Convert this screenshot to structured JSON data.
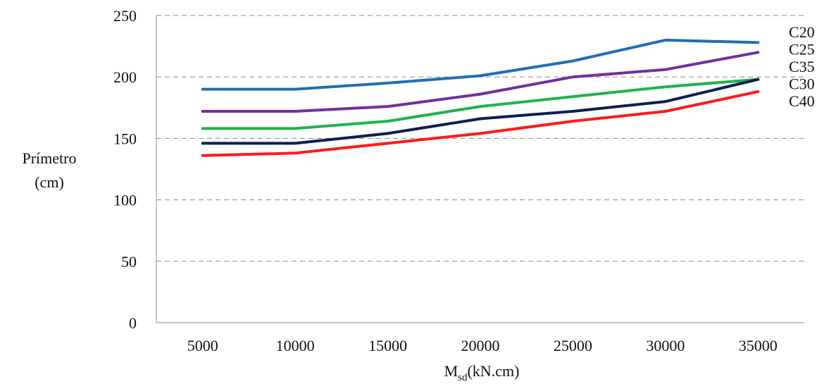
{
  "chart_data": {
    "type": "line",
    "x": [
      5000,
      10000,
      15000,
      20000,
      25000,
      30000,
      35000
    ],
    "categories": [
      "5000",
      "10000",
      "15000",
      "20000",
      "25000",
      "30000",
      "35000"
    ],
    "ylabel_line1": "Prímetro",
    "ylabel_line2": "(cm)",
    "xlabel_main": "M",
    "xlabel_sub": "sd",
    "xlabel_unit": "(kN.cm)",
    "ylim": [
      0,
      250
    ],
    "yticks": [
      "0",
      "50",
      "100",
      "150",
      "200",
      "250"
    ],
    "grid": true,
    "series": [
      {
        "name": "C20",
        "color": "#1f6fb5",
        "values": [
          190,
          190,
          195,
          201,
          213,
          230,
          228
        ]
      },
      {
        "name": "C25",
        "color": "#7030a0",
        "values": [
          172,
          172,
          176,
          186,
          200,
          206,
          220
        ]
      },
      {
        "name": "C35",
        "color": "#22b14c",
        "values": [
          158,
          158,
          164,
          176,
          184,
          192,
          198
        ]
      },
      {
        "name": "C30",
        "color": "#0d1f4f",
        "values": [
          146,
          146,
          154,
          166,
          172,
          180,
          198
        ]
      },
      {
        "name": "C40",
        "color": "#ff1a1a",
        "values": [
          136,
          138,
          146,
          154,
          164,
          172,
          188
        ]
      }
    ]
  }
}
